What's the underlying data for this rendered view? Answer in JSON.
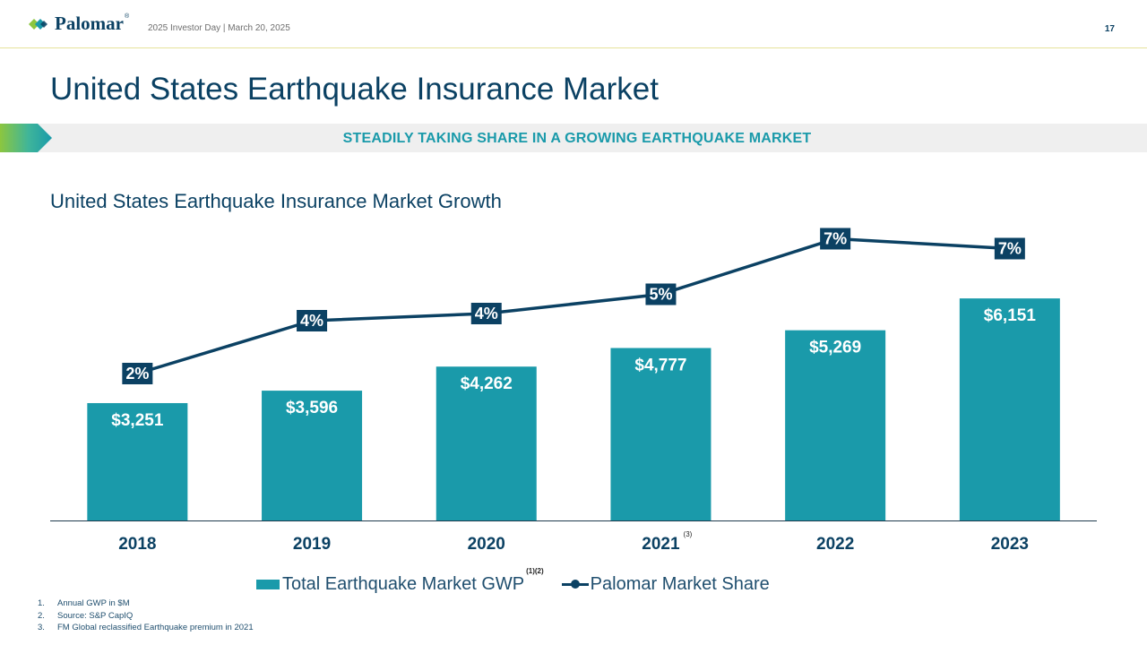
{
  "header": {
    "logo_text": "Palomar",
    "logo_reg": "®",
    "subtitle": "2025 Investor Day | March 20, 2025",
    "page_number": "17"
  },
  "title": "United States Earthquake Insurance Market",
  "banner": "STEADILY TAKING SHARE IN A GROWING EARTHQUAKE MARKET",
  "chart_title": "United States Earthquake Insurance Market Growth",
  "legend": {
    "bar_label": "Total Earthquake Market GWP",
    "bar_sup": "(1)(2)",
    "line_label": "Palomar Market Share"
  },
  "footnotes": [
    {
      "num": "1.",
      "text": "Annual GWP in $M"
    },
    {
      "num": "2.",
      "text": "Source: S&P CapIQ"
    },
    {
      "num": "3.",
      "text": "FM Global reclassified Earthquake premium in 2021"
    }
  ],
  "colors": {
    "bar": "#1a9aaa",
    "line": "#0b4163",
    "title": "#0b4163",
    "banner_text": "#1a9aaa"
  },
  "chart_data": {
    "type": "bar",
    "categories": [
      "2018",
      "2019",
      "2020",
      "2021",
      "2022",
      "2023"
    ],
    "category_sup": [
      "",
      "",
      "",
      "(3)",
      "",
      ""
    ],
    "series": [
      {
        "name": "Total Earthquake Market GWP",
        "type": "bar",
        "values": [
          3251,
          3596,
          4262,
          4777,
          5269,
          6151
        ],
        "labels": [
          "$3,251",
          "$3,596",
          "$4,262",
          "$4,777",
          "$5,269",
          "$6,151"
        ]
      },
      {
        "name": "Palomar Market Share",
        "type": "line",
        "values": [
          2,
          4,
          4,
          5,
          7,
          7
        ],
        "labels": [
          "2%",
          "4%",
          "4%",
          "5%",
          "7%",
          "7%"
        ]
      }
    ],
    "legend": "bottom",
    "grid": false
  }
}
